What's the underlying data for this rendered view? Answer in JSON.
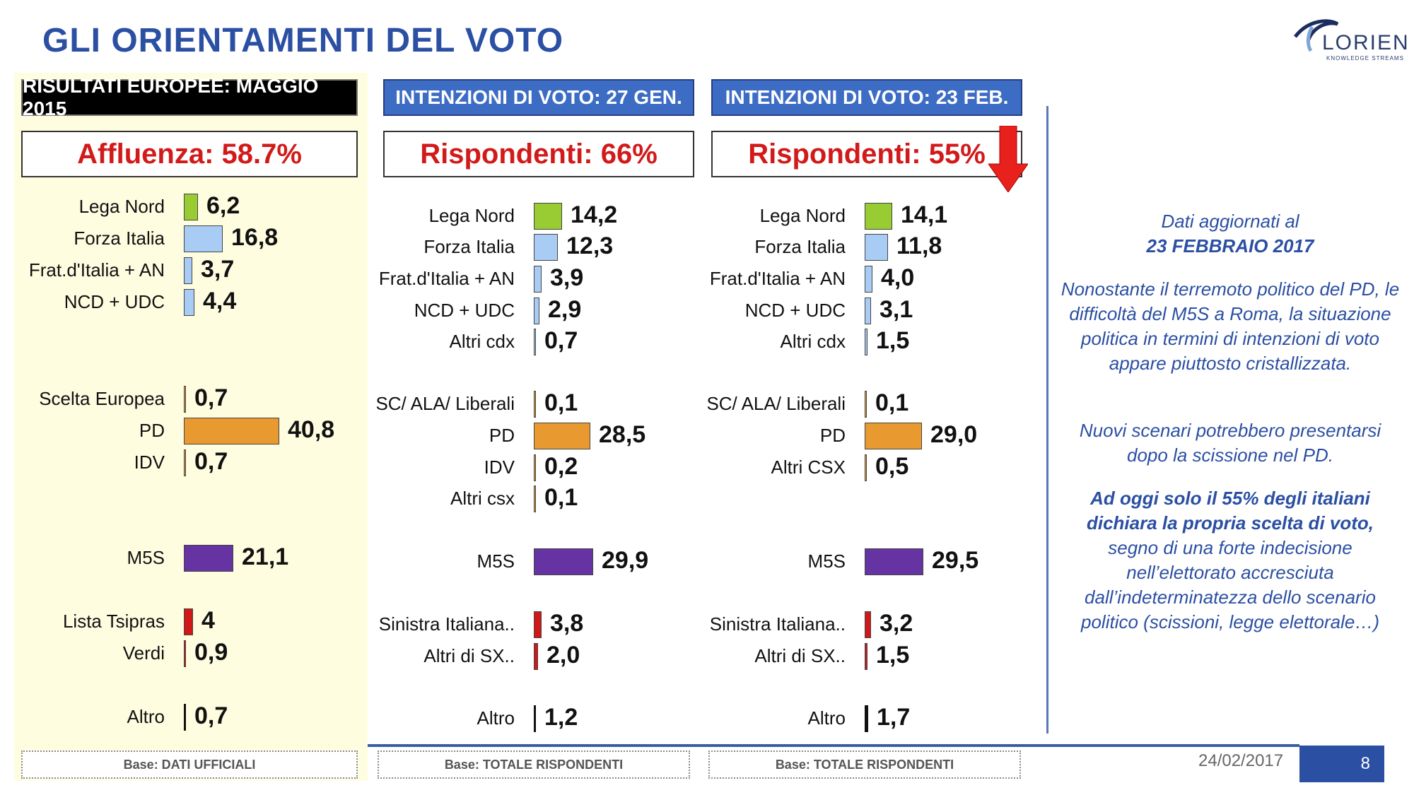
{
  "title": "GLI ORIENTAMENTI DEL VOTO",
  "logo": {
    "brand": "LORIEN",
    "tagline": "KNOWLEDGE STREAMS"
  },
  "colors": {
    "green": "#99cc33",
    "lightblue": "#a9ccf5",
    "orange": "#e89a30",
    "purple": "#6633a3",
    "red": "#d01818",
    "black": "#111111"
  },
  "chart_data": [
    {
      "type": "bar",
      "header": "RISULTATI EUROPEE:  MAGGIO 2015",
      "subtitle": "Affluenza: 58.7%",
      "base": "Base: DATI UFFICIALI",
      "categories": [
        "Lega Nord",
        "Forza Italia",
        "Frat.d'Italia + AN",
        "NCD + UDC",
        "Scelta Europea",
        "PD",
        "IDV",
        "M5S",
        "Lista Tsipras",
        "Verdi",
        "Altro"
      ],
      "labels": [
        "6,2",
        "16,8",
        "3,7",
        "4,4",
        "0,7",
        "40,8",
        "0,7",
        "21,1",
        "4",
        "0,9",
        "0,7"
      ],
      "values": [
        6.2,
        16.8,
        3.7,
        4.4,
        0.7,
        40.8,
        0.7,
        21.1,
        4,
        0.9,
        0.7
      ],
      "colors": [
        "green",
        "lightblue",
        "lightblue",
        "lightblue",
        "orange",
        "orange",
        "orange",
        "purple",
        "red",
        "red",
        "black"
      ]
    },
    {
      "type": "bar",
      "header": "INTENZIONI DI VOTO: 27 GEN.",
      "subtitle": "Rispondenti: 66%",
      "base": "Base: TOTALE RISPONDENTI",
      "categories": [
        "Lega Nord",
        "Forza Italia",
        "Frat.d'Italia + AN",
        "NCD + UDC",
        "Altri cdx",
        "SC/ ALA/ Liberali",
        "PD",
        "IDV",
        "Altri csx",
        "M5S",
        "Sinistra Italiana..",
        "Altri di SX..",
        "Altro"
      ],
      "labels": [
        "14,2",
        "12,3",
        "3,9",
        "2,9",
        "0,7",
        "0,1",
        "28,5",
        "0,2",
        "0,1",
        "29,9",
        "3,8",
        "2,0",
        "1,2"
      ],
      "values": [
        14.2,
        12.3,
        3.9,
        2.9,
        0.7,
        0.1,
        28.5,
        0.2,
        0.1,
        29.9,
        3.8,
        2.0,
        1.2
      ],
      "colors": [
        "green",
        "lightblue",
        "lightblue",
        "lightblue",
        "lightblue",
        "orange",
        "orange",
        "orange",
        "orange",
        "purple",
        "red",
        "red",
        "black"
      ]
    },
    {
      "type": "bar",
      "header": "INTENZIONI DI VOTO: 23 FEB.",
      "subtitle": "Rispondenti: 55%",
      "base": "Base: TOTALE RISPONDENTI",
      "categories": [
        "Lega Nord",
        "Forza Italia",
        "Frat.d'Italia + AN",
        "NCD + UDC",
        "Altri cdx",
        "SC/ ALA/ Liberali",
        "PD",
        "Altri CSX",
        "M5S",
        "Sinistra Italiana..",
        "Altri di SX..",
        "Altro"
      ],
      "labels": [
        "14,1",
        "11,8",
        "4,0",
        "3,1",
        "1,5",
        "0,1",
        "29,0",
        "0,5",
        "29,5",
        "3,2",
        "1,5",
        "1,7"
      ],
      "values": [
        14.1,
        11.8,
        4.0,
        3.1,
        1.5,
        0.1,
        29.0,
        0.5,
        29.5,
        3.2,
        1.5,
        1.7
      ],
      "colors": [
        "green",
        "lightblue",
        "lightblue",
        "lightblue",
        "lightblue",
        "orange",
        "orange",
        "orange",
        "purple",
        "red",
        "red",
        "black"
      ]
    }
  ],
  "notes": {
    "p1_line1": "Dati aggiornati al",
    "p1_line2": "23 FEBBRAIO 2017",
    "p2": "Nonostante il terremoto politico  del PD, le difficoltà del M5S a Roma, la situazione politica in termini di intenzioni di voto appare piuttosto cristallizzata.",
    "p3": "Nuovi scenari potrebbero presentarsi dopo la scissione nel PD.",
    "p4_bold": "Ad oggi solo il 55% degli italiani dichiara la propria scelta di voto,",
    "p4_rest": " segno di una forte indecisione nell’elettorato accresciuta dall’indeterminatezza dello scenario politico (scissioni, legge elettorale…)"
  },
  "footer": {
    "date": "24/02/2017",
    "page": "8"
  }
}
